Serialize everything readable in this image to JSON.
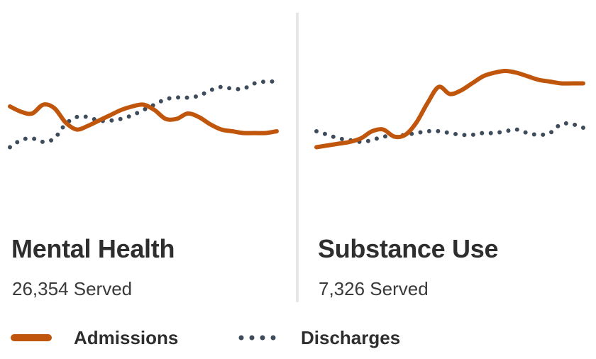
{
  "colors": {
    "admissions": "#c0560c",
    "discharges": "#3e4b5a"
  },
  "chart_data": [
    {
      "type": "line",
      "panel_title": "Mental Health",
      "served": "26,354 Served",
      "x": [
        0,
        1,
        2,
        3,
        4,
        5,
        6,
        7,
        8,
        9,
        10,
        11,
        12,
        13,
        14,
        15,
        16,
        17,
        18,
        19,
        20,
        21,
        22,
        23,
        24
      ],
      "ylim": [
        0,
        100
      ],
      "series": [
        {
          "name": "Admissions",
          "style": "solid",
          "values": [
            56,
            53,
            52,
            57,
            55,
            47,
            43,
            45,
            48,
            51,
            54,
            56,
            57,
            54,
            49,
            49,
            52,
            50,
            46,
            43,
            42,
            41,
            41,
            41,
            42
          ]
        },
        {
          "name": "Discharges",
          "style": "dotted",
          "values": [
            33,
            37,
            38,
            36,
            38,
            46,
            50,
            50,
            48,
            48,
            49,
            51,
            54,
            57,
            60,
            61,
            61,
            62,
            65,
            67,
            66,
            66,
            69,
            70,
            70
          ]
        }
      ]
    },
    {
      "type": "line",
      "panel_title": "Substance Use",
      "served": "7,326 Served",
      "x": [
        0,
        1,
        2,
        3,
        4,
        5,
        6,
        7,
        8,
        9,
        10,
        11,
        12,
        13,
        14,
        15,
        16,
        17,
        18,
        19,
        20,
        21,
        22,
        23,
        24
      ],
      "ylim": [
        0,
        100
      ],
      "series": [
        {
          "name": "Admissions",
          "style": "solid",
          "values": [
            33,
            34,
            35,
            36,
            38,
            42,
            43,
            39,
            40,
            47,
            58,
            67,
            63,
            65,
            69,
            73,
            75,
            76,
            75,
            73,
            71,
            70,
            69,
            69,
            69
          ]
        },
        {
          "name": "Discharges",
          "style": "dotted",
          "values": [
            42,
            40,
            38,
            37,
            36,
            37,
            39,
            39,
            40,
            41,
            42,
            42,
            41,
            40,
            40,
            41,
            41,
            42,
            43,
            41,
            40,
            41,
            46,
            46,
            44
          ]
        }
      ]
    }
  ],
  "legend": [
    {
      "label": "Admissions",
      "icon": "solid-line-swatch-icon"
    },
    {
      "label": "Discharges",
      "icon": "dotted-line-swatch-icon"
    }
  ]
}
